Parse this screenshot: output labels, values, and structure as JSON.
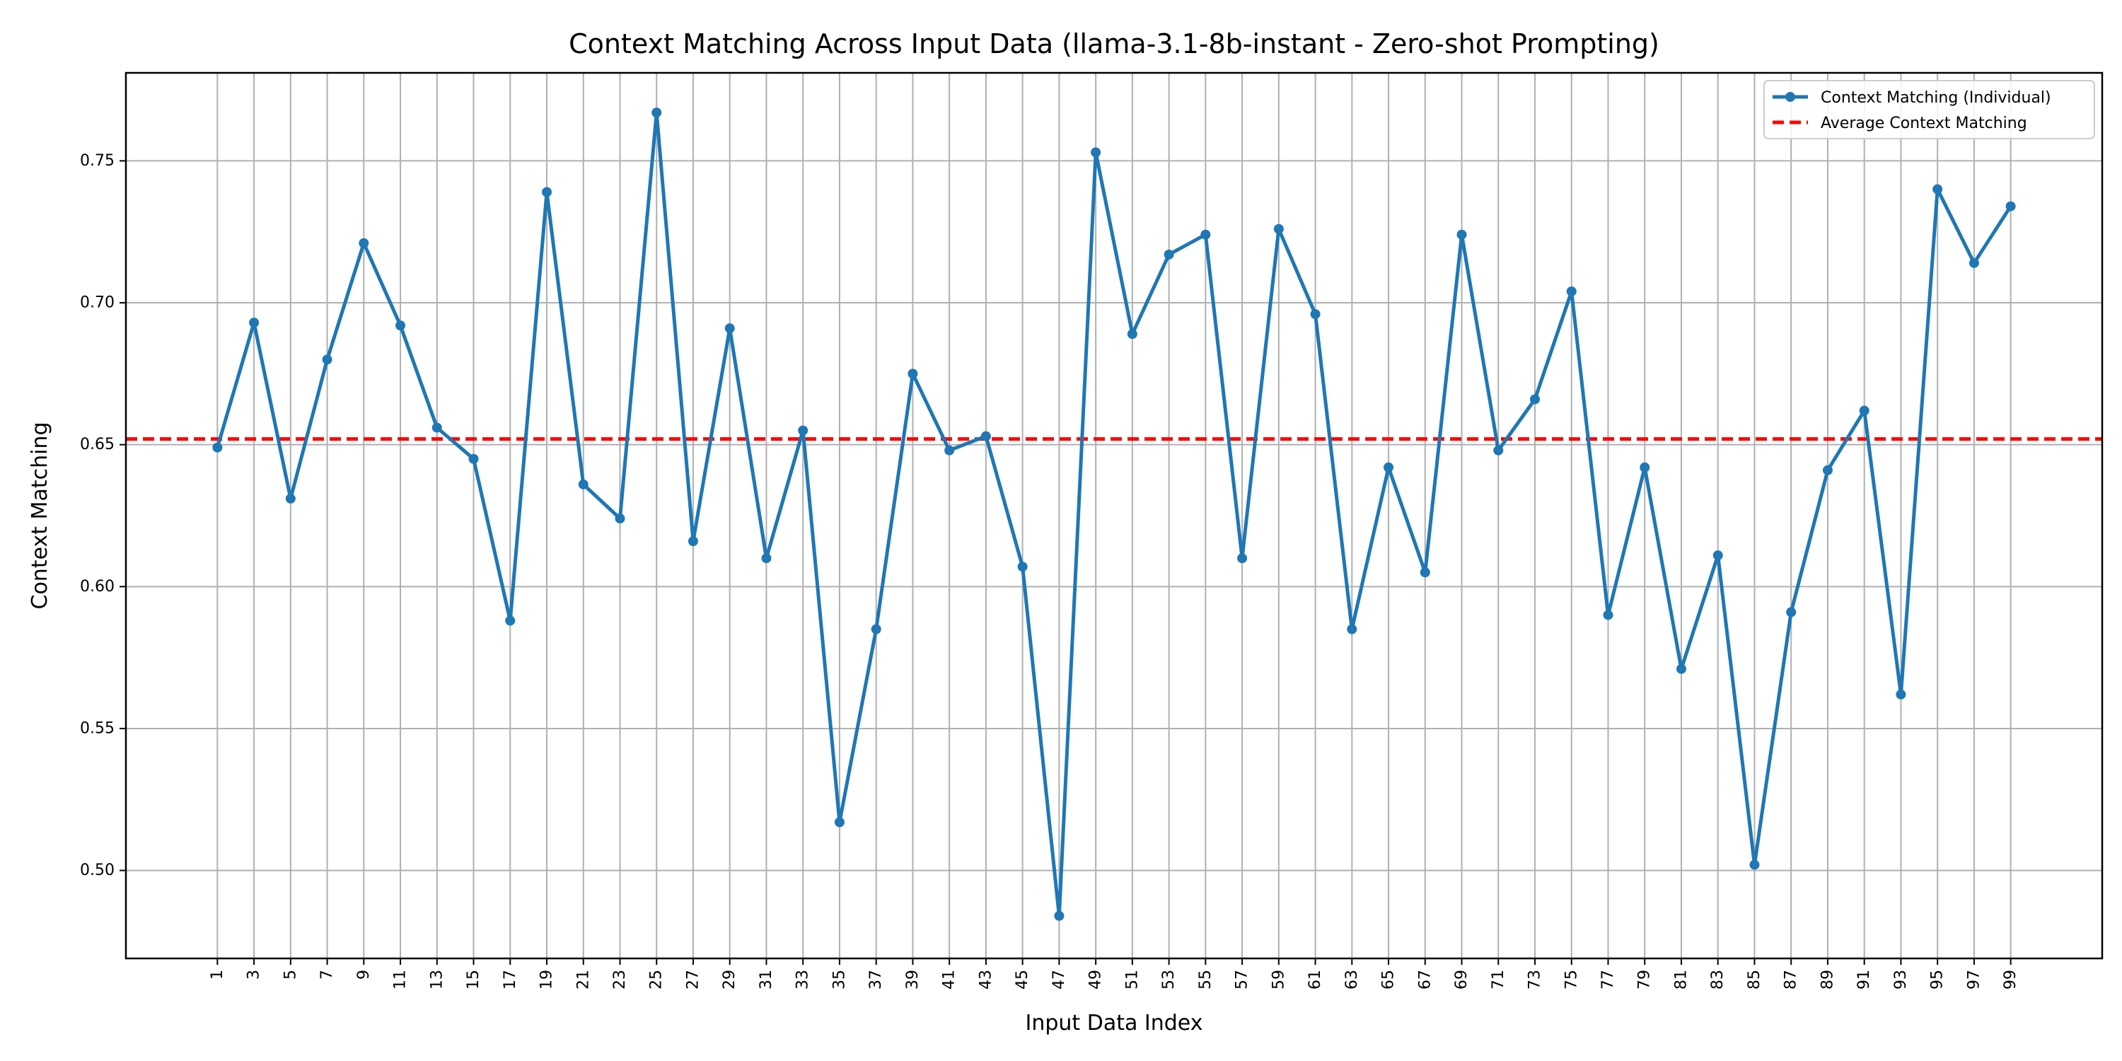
{
  "chart_data": {
    "type": "line",
    "title": "Context Matching Across Input Data (llama-3.1-8b-instant - Zero-shot Prompting)",
    "xlabel": "Input Data Index",
    "ylabel": "Context Matching",
    "xticks": [
      1,
      3,
      5,
      7,
      9,
      11,
      13,
      15,
      17,
      19,
      21,
      23,
      25,
      27,
      29,
      31,
      33,
      35,
      37,
      39,
      41,
      43,
      45,
      47,
      49,
      51,
      53,
      55,
      57,
      59,
      61,
      63,
      65,
      67,
      69,
      71,
      73,
      75,
      77,
      79,
      81,
      83,
      85,
      87,
      89,
      91,
      93,
      95,
      97,
      99
    ],
    "yticks": [
      "0.50",
      "0.55",
      "0.60",
      "0.65",
      "0.70",
      "0.75"
    ],
    "xlim": [
      -4,
      104
    ],
    "ylim": [
      0.469,
      0.781
    ],
    "grid": true,
    "legend_position": "top-right",
    "colors": {
      "series": "#1f77b4",
      "average": "#ff0000",
      "grid": "#b0b0b0"
    },
    "series": [
      {
        "name": "Context Matching (Individual)",
        "style": "line-marker",
        "x": [
          1,
          3,
          5,
          7,
          9,
          11,
          13,
          15,
          17,
          19,
          21,
          23,
          25,
          27,
          29,
          31,
          33,
          35,
          37,
          39,
          41,
          43,
          45,
          47,
          49,
          51,
          53,
          55,
          57,
          59,
          61,
          63,
          65,
          67,
          69,
          71,
          73,
          75,
          77,
          79,
          81,
          83,
          85,
          87,
          89,
          91,
          93,
          95,
          97,
          99
        ],
        "values": [
          0.649,
          0.693,
          0.631,
          0.68,
          0.721,
          0.692,
          0.656,
          0.645,
          0.588,
          0.739,
          0.636,
          0.624,
          0.767,
          0.616,
          0.691,
          0.61,
          0.655,
          0.517,
          0.585,
          0.675,
          0.648,
          0.653,
          0.607,
          0.484,
          0.753,
          0.689,
          0.717,
          0.724,
          0.61,
          0.726,
          0.696,
          0.585,
          0.642,
          0.605,
          0.724,
          0.648,
          0.666,
          0.704,
          0.59,
          0.642,
          0.571,
          0.611,
          0.502,
          0.591,
          0.641,
          0.662,
          0.562,
          0.74,
          0.714,
          0.734
        ]
      },
      {
        "name": "Average Context Matching",
        "style": "dashed-hline",
        "value": 0.652
      }
    ]
  }
}
